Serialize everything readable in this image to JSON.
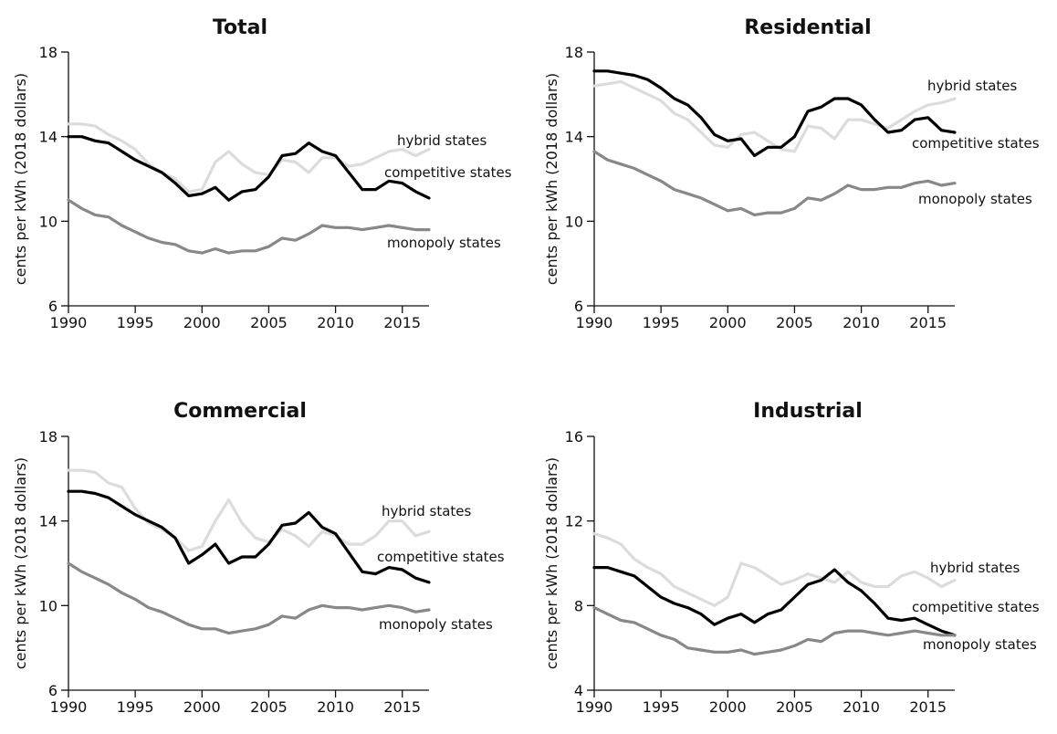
{
  "chart_data": [
    {
      "type": "line",
      "title": "Total",
      "ylabel": "cents per kWh (2018 dollars)",
      "xlim": [
        1990,
        2017
      ],
      "ylim": [
        6,
        18
      ],
      "yticks": [
        6,
        10,
        14,
        18
      ],
      "xticks": [
        1990,
        1995,
        2000,
        2005,
        2010,
        2015
      ],
      "grid": false,
      "x": [
        1990,
        1991,
        1992,
        1993,
        1994,
        1995,
        1996,
        1997,
        1998,
        1999,
        2000,
        2001,
        2002,
        2003,
        2004,
        2005,
        2006,
        2007,
        2008,
        2009,
        2010,
        2011,
        2012,
        2013,
        2014,
        2015,
        2016,
        2017
      ],
      "series": [
        {
          "name": "hybrid states",
          "color": "#dcdcdc",
          "values": [
            14.6,
            14.6,
            14.5,
            14.1,
            13.8,
            13.4,
            12.7,
            12.3,
            12.0,
            11.4,
            11.5,
            12.8,
            13.3,
            12.7,
            12.3,
            12.2,
            12.9,
            12.8,
            12.3,
            13.0,
            13.0,
            12.6,
            12.7,
            13.0,
            13.3,
            13.4,
            13.1,
            13.4
          ]
        },
        {
          "name": "competitive states",
          "color": "#000000",
          "values": [
            14.0,
            14.0,
            13.8,
            13.7,
            13.3,
            12.9,
            12.6,
            12.3,
            11.8,
            11.2,
            11.3,
            11.6,
            11.0,
            11.4,
            11.5,
            12.1,
            13.1,
            13.2,
            13.7,
            13.3,
            13.1,
            12.3,
            11.5,
            11.5,
            11.9,
            11.8,
            11.4,
            11.1
          ]
        },
        {
          "name": "monopoly states",
          "color": "#888888",
          "values": [
            11.0,
            10.6,
            10.3,
            10.2,
            9.8,
            9.5,
            9.2,
            9.0,
            8.9,
            8.6,
            8.5,
            8.7,
            8.5,
            8.6,
            8.6,
            8.8,
            9.2,
            9.1,
            9.4,
            9.8,
            9.7,
            9.7,
            9.6,
            9.7,
            9.8,
            9.7,
            9.6,
            9.6
          ]
        }
      ]
    },
    {
      "type": "line",
      "title": "Residential",
      "ylabel": "cents per kWh (2018 dollars)",
      "xlim": [
        1990,
        2017
      ],
      "ylim": [
        6,
        18
      ],
      "yticks": [
        6,
        10,
        14,
        18
      ],
      "xticks": [
        1990,
        1995,
        2000,
        2005,
        2010,
        2015
      ],
      "grid": false,
      "x": [
        1990,
        1991,
        1992,
        1993,
        1994,
        1995,
        1996,
        1997,
        1998,
        1999,
        2000,
        2001,
        2002,
        2003,
        2004,
        2005,
        2006,
        2007,
        2008,
        2009,
        2010,
        2011,
        2012,
        2013,
        2014,
        2015,
        2016,
        2017
      ],
      "series": [
        {
          "name": "hybrid states",
          "color": "#dcdcdc",
          "values": [
            16.4,
            16.5,
            16.6,
            16.3,
            16.0,
            15.7,
            15.1,
            14.8,
            14.2,
            13.6,
            13.5,
            14.1,
            14.2,
            13.8,
            13.4,
            13.3,
            14.5,
            14.4,
            13.9,
            14.8,
            14.8,
            14.6,
            14.4,
            14.8,
            15.2,
            15.5,
            15.6,
            15.8
          ]
        },
        {
          "name": "competitive states",
          "color": "#000000",
          "values": [
            17.1,
            17.1,
            17.0,
            16.9,
            16.7,
            16.3,
            15.8,
            15.5,
            14.9,
            14.1,
            13.8,
            13.9,
            13.1,
            13.5,
            13.5,
            14.0,
            15.2,
            15.4,
            15.8,
            15.8,
            15.5,
            14.8,
            14.2,
            14.3,
            14.8,
            14.9,
            14.3,
            14.2
          ]
        },
        {
          "name": "monopoly states",
          "color": "#888888",
          "values": [
            13.3,
            12.9,
            12.7,
            12.5,
            12.2,
            11.9,
            11.5,
            11.3,
            11.1,
            10.8,
            10.5,
            10.6,
            10.3,
            10.4,
            10.4,
            10.6,
            11.1,
            11.0,
            11.3,
            11.7,
            11.5,
            11.5,
            11.6,
            11.6,
            11.8,
            11.9,
            11.7,
            11.8
          ]
        }
      ]
    },
    {
      "type": "line",
      "title": "Commercial",
      "ylabel": "cents per kWh (2018 dollars)",
      "xlim": [
        1990,
        2017
      ],
      "ylim": [
        6,
        18
      ],
      "yticks": [
        6,
        10,
        14,
        18
      ],
      "xticks": [
        1990,
        1995,
        2000,
        2005,
        2010,
        2015
      ],
      "grid": false,
      "x": [
        1990,
        1991,
        1992,
        1993,
        1994,
        1995,
        1996,
        1997,
        1998,
        1999,
        2000,
        2001,
        2002,
        2003,
        2004,
        2005,
        2006,
        2007,
        2008,
        2009,
        2010,
        2011,
        2012,
        2013,
        2014,
        2015,
        2016,
        2017
      ],
      "series": [
        {
          "name": "hybrid states",
          "color": "#dcdcdc",
          "values": [
            16.4,
            16.4,
            16.3,
            15.8,
            15.6,
            14.6,
            13.9,
            13.6,
            13.2,
            12.6,
            12.8,
            14.0,
            15.0,
            13.9,
            13.2,
            13.0,
            13.6,
            13.3,
            12.8,
            13.5,
            13.3,
            12.9,
            12.9,
            13.3,
            14.0,
            14.0,
            13.3,
            13.5
          ]
        },
        {
          "name": "competitive states",
          "color": "#000000",
          "values": [
            15.4,
            15.4,
            15.3,
            15.1,
            14.7,
            14.3,
            14.0,
            13.7,
            13.2,
            12.0,
            12.4,
            12.9,
            12.0,
            12.3,
            12.3,
            12.9,
            13.8,
            13.9,
            14.4,
            13.7,
            13.4,
            12.5,
            11.6,
            11.5,
            11.8,
            11.7,
            11.3,
            11.1
          ]
        },
        {
          "name": "monopoly states",
          "color": "#888888",
          "values": [
            12.0,
            11.6,
            11.3,
            11.0,
            10.6,
            10.3,
            9.9,
            9.7,
            9.4,
            9.1,
            8.9,
            8.9,
            8.7,
            8.8,
            8.9,
            9.1,
            9.5,
            9.4,
            9.8,
            10.0,
            9.9,
            9.9,
            9.8,
            9.9,
            10.0,
            9.9,
            9.7,
            9.8
          ]
        }
      ]
    },
    {
      "type": "line",
      "title": "Industrial",
      "ylabel": "cents per kWh (2018 dollars)",
      "xlim": [
        1990,
        2017
      ],
      "ylim": [
        4,
        16
      ],
      "yticks": [
        4,
        8,
        12,
        16
      ],
      "xticks": [
        1990,
        1995,
        2000,
        2005,
        2010,
        2015
      ],
      "grid": false,
      "x": [
        1990,
        1991,
        1992,
        1993,
        1994,
        1995,
        1996,
        1997,
        1998,
        1999,
        2000,
        2001,
        2002,
        2003,
        2004,
        2005,
        2006,
        2007,
        2008,
        2009,
        2010,
        2011,
        2012,
        2013,
        2014,
        2015,
        2016,
        2017
      ],
      "series": [
        {
          "name": "hybrid states",
          "color": "#dcdcdc",
          "values": [
            11.4,
            11.2,
            10.9,
            10.2,
            9.8,
            9.5,
            8.9,
            8.6,
            8.3,
            8.0,
            8.4,
            10.0,
            9.8,
            9.4,
            9.0,
            9.2,
            9.5,
            9.3,
            9.1,
            9.6,
            9.1,
            8.9,
            8.9,
            9.4,
            9.6,
            9.3,
            8.9,
            9.2
          ]
        },
        {
          "name": "competitive states",
          "color": "#000000",
          "values": [
            9.8,
            9.8,
            9.6,
            9.4,
            8.9,
            8.4,
            8.1,
            7.9,
            7.6,
            7.1,
            7.4,
            7.6,
            7.2,
            7.6,
            7.8,
            8.4,
            9.0,
            9.2,
            9.7,
            9.1,
            8.7,
            8.1,
            7.4,
            7.3,
            7.4,
            7.1,
            6.8,
            6.6
          ]
        },
        {
          "name": "monopoly states",
          "color": "#888888",
          "values": [
            7.9,
            7.6,
            7.3,
            7.2,
            6.9,
            6.6,
            6.4,
            6.0,
            5.9,
            5.8,
            5.8,
            5.9,
            5.7,
            5.8,
            5.9,
            6.1,
            6.4,
            6.3,
            6.7,
            6.8,
            6.8,
            6.7,
            6.6,
            6.7,
            6.8,
            6.7,
            6.6,
            6.6
          ]
        }
      ]
    }
  ]
}
